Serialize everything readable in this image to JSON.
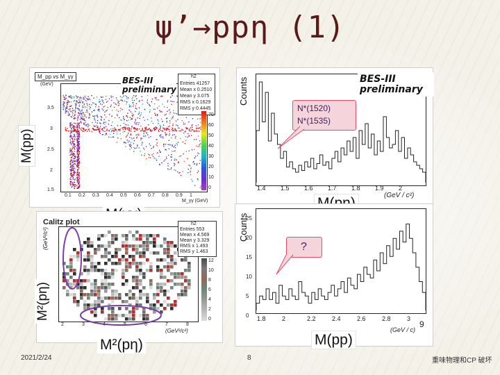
{
  "slide": {
    "title": "ψ’→ppη (1)",
    "date": "2021/2/24",
    "page_number": "8",
    "footer_right": "重味物理和CP 破坏"
  },
  "top_left": {
    "title_box": "M_pp vs M_γγ",
    "bes_line1": "BES-III",
    "bes_line2": "preliminary",
    "stats": {
      "name": "h2",
      "rows": [
        "Entries  41257",
        "Mean x  0.2510",
        "Mean y  3.075",
        "RMS x  0.1629",
        "RMS y  0.4445"
      ]
    },
    "y_axis_title": "(GeV)",
    "y_ticks": [
      "3.5",
      "3",
      "2.5",
      "2",
      "1.5"
    ],
    "x_ticks": [
      "0.1",
      "0.2",
      "0.3",
      "0.4",
      "0.5",
      "0.6",
      "0.7",
      "0.8",
      "0.9",
      "1"
    ],
    "x_axis_title": "M_γγ (GeV)",
    "z_ticks": [
      "70",
      "60",
      "50",
      "40",
      "30",
      "20",
      "10",
      "0"
    ],
    "ylabel_overlay": "M(pp)",
    "xlabel_overlay": "M(γγ)"
  },
  "top_right": {
    "y_axis_title": "Counts",
    "bes_line1": "BES-III",
    "bes_line2": "preliminary",
    "annotation_line1": "N*(1520)",
    "annotation_line2": "N*(1535)",
    "x_ticks": [
      "1.4",
      "1.5",
      "1.6",
      "1.7",
      "1.8",
      "1.9",
      "2"
    ],
    "xlabel_overlay": "M(pη)",
    "units": "(GeV / c²)"
  },
  "bottom_left": {
    "heading": "Calitz plot",
    "stats": {
      "name": "h2",
      "rows": [
        "Entries  553",
        "Mean x  4.569",
        "Mean y  3.329",
        "RMS x  1.493",
        "RMS y  1.463"
      ]
    },
    "y_axis_title": "(GeV²/c²)",
    "x_ticks": [
      "2",
      "3",
      "4",
      "5",
      "6",
      "7",
      "8"
    ],
    "x_axis_title": "(GeV²/c²)",
    "z_ticks": [
      "12",
      "10",
      "8",
      "6",
      "4",
      "2",
      "0"
    ],
    "ylabel_overlay": "M²(pη)",
    "xlabel_overlay": "M²(pη)"
  },
  "bottom_right": {
    "y_axis_title": "Counts",
    "y_ticks": [
      "25",
      "20",
      "15",
      "10",
      "5",
      "0"
    ],
    "x_ticks": [
      "1.8",
      "2",
      "2.2",
      "2.4",
      "2.6",
      "2.8",
      "3"
    ],
    "annotation": "?",
    "units": "(GeV / c)",
    "xlabel_overlay": "M(pp)",
    "edge_tick": "9"
  },
  "colors": {
    "title": "#5a1a1a",
    "ellipse": "#7a3da8",
    "annotation": "#e0506a",
    "hist": "#222222"
  }
}
